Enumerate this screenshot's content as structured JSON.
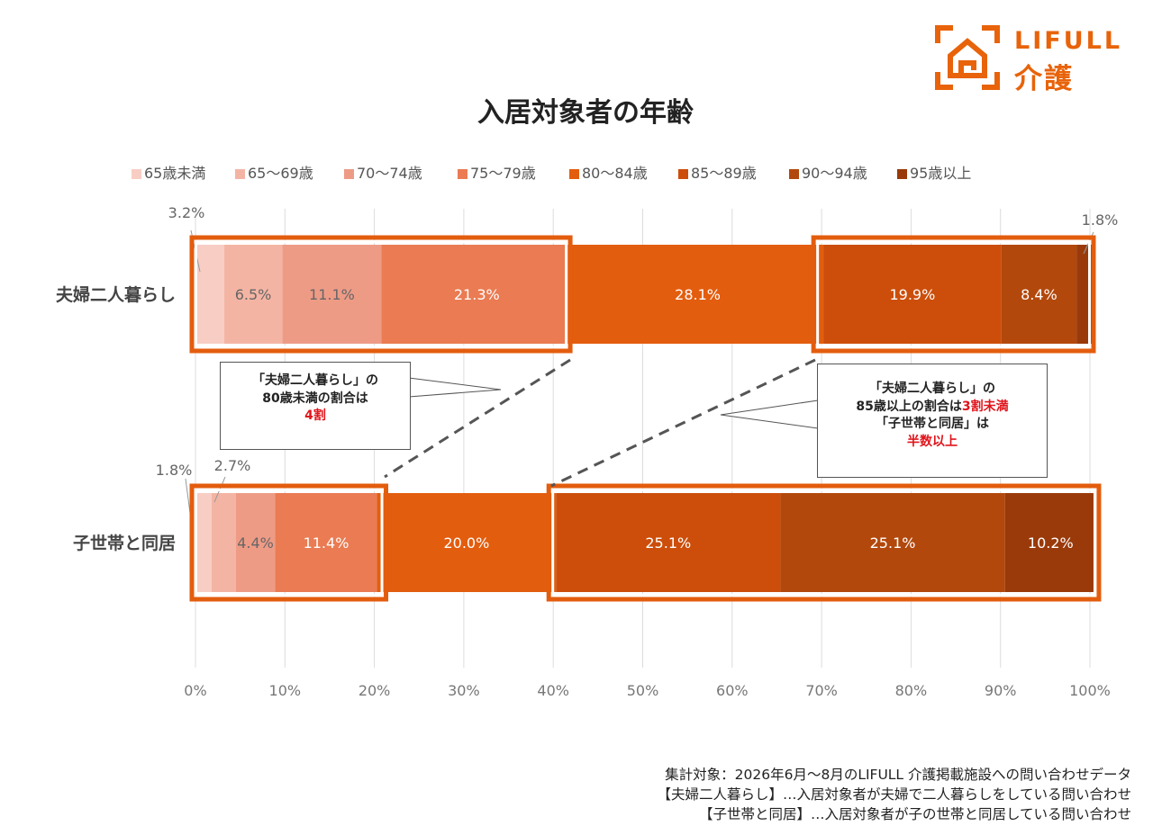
{
  "logo": {
    "brand": "LIFULL",
    "sub": "介護"
  },
  "title": "入居対象者の年齢",
  "chart_data": {
    "type": "bar",
    "orientation": "horizontal",
    "stacked": true,
    "title": "入居対象者の年齢",
    "categories": [
      "夫婦二人暮らし",
      "子世帯と同居"
    ],
    "series": [
      {
        "name": "65歳未満",
        "values": [
          3.2,
          1.8
        ],
        "color": "#f8cdc4"
      },
      {
        "name": "65～69歳",
        "values": [
          6.5,
          2.7
        ],
        "color": "#f4b4a4"
      },
      {
        "name": "70～74歳",
        "values": [
          11.1,
          4.4
        ],
        "color": "#ee9b86"
      },
      {
        "name": "75～79歳",
        "values": [
          21.3,
          11.4
        ],
        "color": "#ea7b52"
      },
      {
        "name": "80～84歳",
        "values": [
          28.1,
          20.0
        ],
        "color": "#e35d0e"
      },
      {
        "name": "85～89歳",
        "values": [
          19.9,
          25.1
        ],
        "color": "#cc4e0a"
      },
      {
        "name": "90～94歳",
        "values": [
          8.4,
          25.1
        ],
        "color": "#b3480c"
      },
      {
        "name": "95歳以上",
        "values": [
          1.8,
          10.2
        ],
        "color": "#9a3a0a"
      }
    ],
    "data_labels": [
      [
        "3.2%",
        "6.5%",
        "11.1%",
        "21.3%",
        "28.1%",
        "19.9%",
        "8.4%",
        "1.8%"
      ],
      [
        "1.8%",
        "2.7%",
        "4.4%",
        "11.4%",
        "20.0%",
        "25.1%",
        "25.1%",
        "10.2%"
      ]
    ],
    "x_ticks": [
      "0%",
      "10%",
      "20%",
      "30%",
      "40%",
      "50%",
      "60%",
      "70%",
      "80%",
      "90%",
      "100%"
    ],
    "xlim": [
      0,
      100
    ],
    "grid": true,
    "legend_position": "top"
  },
  "callouts": {
    "left": {
      "line1": "「夫婦二人暮らし」の",
      "line2": "80歳未満の割合は",
      "line3": "4割"
    },
    "right": {
      "line1": "「夫婦二人暮らし」の",
      "line2_prefix": "85歳以上の割合は",
      "line2_red": "3割未満",
      "line3": "「子世帯と同居」は",
      "line4": "半数以上"
    }
  },
  "footer": {
    "line1": "集計対象：2026年6月～8月のLIFULL 介護掲載施設への問い合わせデータ",
    "line2": "【夫婦二人暮らし】…入居対象者が夫婦で二人暮らしをしている問い合わせ",
    "line3": "【子世帯と同居】…入居対象者が子の世帯と同居している問い合わせ"
  },
  "colors": {
    "accent": "#e8630a",
    "highlight_box": "#e35d0e",
    "emphasis": "#e0151c"
  }
}
